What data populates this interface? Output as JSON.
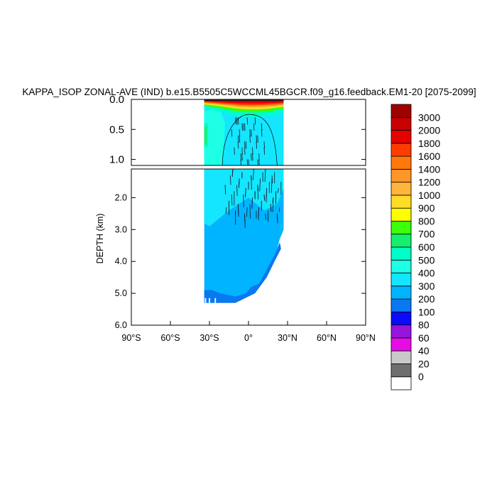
{
  "chart_data": {
    "type": "contour",
    "title": "KAPPA_ISOP ZONAL-AVE (IND) b.e15.B5505C5WCCML45BGCR.f09_g16.feedback.EM1-20 [2075-2099]",
    "ylabel": "DEPTH (km)",
    "x_tick_labels": [
      "90°S",
      "60°S",
      "30°S",
      "0°",
      "30°N",
      "60°N",
      "90°N"
    ],
    "x_ticks": [
      -90,
      -60,
      -30,
      0,
      30,
      60,
      90
    ],
    "upper_panel": {
      "ylim": [
        0.0,
        1.1
      ],
      "y_tick_labels": [
        "0.0",
        "0.5",
        "1.0"
      ],
      "y_ticks": [
        0.0,
        0.5,
        1.0
      ]
    },
    "lower_panel": {
      "ylim": [
        1.1,
        6.0
      ],
      "y_tick_labels": [
        "2.0",
        "3.0",
        "4.0",
        "5.0",
        "6.0"
      ],
      "y_ticks": [
        2.0,
        3.0,
        4.0,
        5.0,
        6.0
      ]
    },
    "colorbar": {
      "levels": [
        "0",
        "20",
        "40",
        "60",
        "80",
        "100",
        "200",
        "300",
        "400",
        "500",
        "600",
        "700",
        "800",
        "900",
        "1000",
        "1200",
        "1400",
        "1600",
        "1800",
        "2000",
        "3000"
      ],
      "colors": [
        "#ffffff",
        "#6e6e6e",
        "#c8c8c8",
        "#e60ce6",
        "#9614dc",
        "#0a0aff",
        "#0a78f0",
        "#00b4ff",
        "#14e6ff",
        "#1effe6",
        "#00ffc8",
        "#14f06e",
        "#3cff0a",
        "#ffff00",
        "#ffdc28",
        "#ffb43c",
        "#ff9628",
        "#ff780a",
        "#ff3c00",
        "#e60000",
        "#c80000",
        "#a00000"
      ]
    },
    "data_extent": {
      "lat_range": [
        -34,
        27
      ],
      "max_depth_km": 5.3
    }
  }
}
